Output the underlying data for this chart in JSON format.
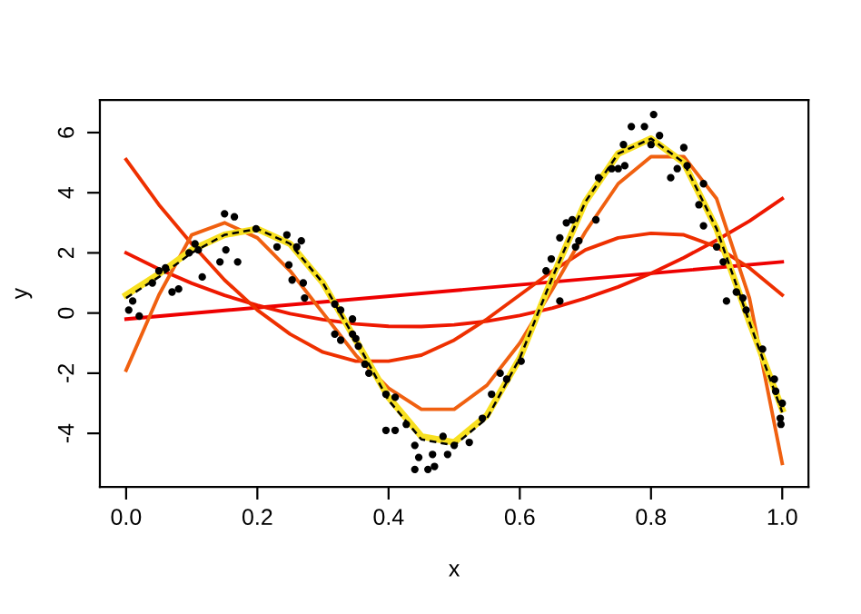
{
  "chart_data": {
    "type": "line",
    "xlabel": "x",
    "ylabel": "y",
    "xlim": [
      -0.04,
      1.04
    ],
    "ylim": [
      -5.78,
      7.08
    ],
    "xticks": [
      {
        "value": 0,
        "label": "0.0"
      },
      {
        "value": 0.2,
        "label": "0.2"
      },
      {
        "value": 0.4,
        "label": "0.4"
      },
      {
        "value": 0.6,
        "label": "0.6"
      },
      {
        "value": 0.8,
        "label": "0.8"
      },
      {
        "value": 1.0,
        "label": "1.0"
      }
    ],
    "yticks": [
      -4,
      -2,
      0,
      2,
      4,
      6
    ],
    "grid": false,
    "series": [
      {
        "type": "scatter",
        "marker": "circle",
        "color": "#000000",
        "x": [
          0.004,
          0.01,
          0.02,
          0.04,
          0.05,
          0.06,
          0.07,
          0.08,
          0.096,
          0.105,
          0.11,
          0.116,
          0.143,
          0.15,
          0.152,
          0.165,
          0.17,
          0.198,
          0.23,
          0.245,
          0.248,
          0.253,
          0.26,
          0.267,
          0.27,
          0.272,
          0.318,
          0.318,
          0.327,
          0.327,
          0.345,
          0.345,
          0.35,
          0.354,
          0.364,
          0.37,
          0.396,
          0.396,
          0.41,
          0.41,
          0.427,
          0.44,
          0.44,
          0.446,
          0.46,
          0.467,
          0.47,
          0.483,
          0.49,
          0.5,
          0.523,
          0.543,
          0.557,
          0.57,
          0.58,
          0.602,
          0.64,
          0.648,
          0.661,
          0.661,
          0.671,
          0.68,
          0.685,
          0.69,
          0.716,
          0.72,
          0.74,
          0.75,
          0.758,
          0.76,
          0.77,
          0.79,
          0.8,
          0.804,
          0.813,
          0.83,
          0.84,
          0.85,
          0.855,
          0.873,
          0.88,
          0.88,
          0.9,
          0.91,
          0.915,
          0.93,
          0.94,
          0.945,
          0.97,
          0.988,
          0.99,
          0.997,
          0.998,
          1.0
        ],
        "values": [
          0.1,
          0.4,
          -0.1,
          1.0,
          1.4,
          1.5,
          0.7,
          0.8,
          2.0,
          2.3,
          2.1,
          1.2,
          1.7,
          3.3,
          2.1,
          3.2,
          1.7,
          2.8,
          2.2,
          2.6,
          1.6,
          1.1,
          2.2,
          2.4,
          1.0,
          0.5,
          0.3,
          -0.7,
          0.1,
          -0.9,
          -0.2,
          -0.7,
          -0.85,
          -1.1,
          -1.7,
          -2.0,
          -2.7,
          -3.9,
          -2.8,
          -3.9,
          -3.7,
          -4.4,
          -5.2,
          -4.8,
          -5.2,
          -4.7,
          -5.1,
          -4.1,
          -4.7,
          -4.4,
          -4.3,
          -3.5,
          -2.7,
          -2.0,
          -2.2,
          -1.6,
          1.4,
          1.8,
          2.5,
          0.4,
          3.0,
          3.1,
          2.2,
          2.4,
          3.1,
          4.5,
          4.8,
          4.8,
          5.6,
          4.9,
          6.2,
          6.2,
          5.6,
          6.6,
          5.9,
          4.5,
          4.8,
          5.5,
          4.9,
          3.6,
          4.3,
          2.9,
          2.2,
          1.7,
          0.4,
          0.7,
          0.5,
          0.1,
          -1.2,
          -2.2,
          -2.6,
          -3.5,
          -3.7,
          -3.0
        ]
      },
      {
        "line_style": "dashed",
        "color": "#000000",
        "x": [
          0,
          0.05,
          0.1,
          0.15,
          0.2,
          0.25,
          0.3,
          0.35,
          0.4,
          0.45,
          0.5,
          0.55,
          0.6,
          0.65,
          0.7,
          0.75,
          0.8,
          0.85,
          0.9,
          0.95,
          1.0
        ],
        "values": [
          0.5,
          1.2,
          2.0,
          2.6,
          2.8,
          2.3,
          1.0,
          -0.9,
          -2.9,
          -4.2,
          -4.4,
          -3.5,
          -1.5,
          1.2,
          3.7,
          5.3,
          5.8,
          5.0,
          2.8,
          -0.3,
          -3.3
        ]
      },
      {
        "line_style": "solid",
        "color": "#ee0000",
        "x": [
          0,
          1
        ],
        "values": [
          -0.2,
          1.7
        ]
      },
      {
        "line_style": "solid",
        "color": "#ee1800",
        "x": [
          0,
          0.05,
          0.1,
          0.15,
          0.2,
          0.25,
          0.3,
          0.35,
          0.4,
          0.45,
          0.5,
          0.55,
          0.6,
          0.65,
          0.7,
          0.75,
          0.8,
          0.85,
          0.9,
          0.95,
          1.0
        ],
        "values": [
          2.0,
          1.46,
          0.99,
          0.59,
          0.26,
          -0.02,
          -0.22,
          -0.36,
          -0.44,
          -0.45,
          -0.39,
          -0.27,
          -0.08,
          0.17,
          0.49,
          0.87,
          1.32,
          1.84,
          2.42,
          3.06,
          3.8
        ]
      },
      {
        "line_style": "solid",
        "color": "#ee3000",
        "x": [
          0,
          0.05,
          0.1,
          0.15,
          0.2,
          0.25,
          0.3,
          0.35,
          0.4,
          0.45,
          0.5,
          0.55,
          0.6,
          0.65,
          0.7,
          0.75,
          0.8,
          0.85,
          0.9,
          0.95,
          1.0
        ],
        "values": [
          5.1,
          3.6,
          2.3,
          1.1,
          0.1,
          -0.7,
          -1.3,
          -1.6,
          -1.6,
          -1.4,
          -0.9,
          -0.2,
          0.6,
          1.4,
          2.1,
          2.5,
          2.65,
          2.6,
          2.2,
          1.5,
          0.6
        ]
      },
      {
        "line_style": "solid",
        "color": "#f06010",
        "x": [
          0,
          0.05,
          0.1,
          0.15,
          0.2,
          0.25,
          0.3,
          0.35,
          0.4,
          0.45,
          0.5,
          0.55,
          0.6,
          0.65,
          0.7,
          0.75,
          0.8,
          0.85,
          0.9,
          0.95,
          1.0
        ],
        "values": [
          -1.9,
          0.6,
          2.6,
          3.0,
          2.5,
          1.4,
          0.0,
          -1.4,
          -2.5,
          -3.2,
          -3.2,
          -2.4,
          -1.0,
          0.8,
          2.7,
          4.3,
          5.2,
          5.2,
          3.8,
          0.5,
          -5.0
        ]
      },
      {
        "line_style": "solid",
        "color": "#f8e020",
        "x": [
          0,
          0.05,
          0.1,
          0.15,
          0.2,
          0.25,
          0.3,
          0.35,
          0.4,
          0.45,
          0.5,
          0.55,
          0.6,
          0.65,
          0.7,
          0.75,
          0.8,
          0.85,
          0.9,
          0.95,
          1.0
        ],
        "values": [
          0.6,
          1.3,
          2.1,
          2.6,
          2.8,
          2.3,
          1.0,
          -0.9,
          -2.8,
          -4.1,
          -4.3,
          -3.4,
          -1.5,
          1.2,
          3.7,
          5.3,
          5.8,
          5.0,
          2.8,
          -0.3,
          -3.2
        ]
      }
    ]
  }
}
